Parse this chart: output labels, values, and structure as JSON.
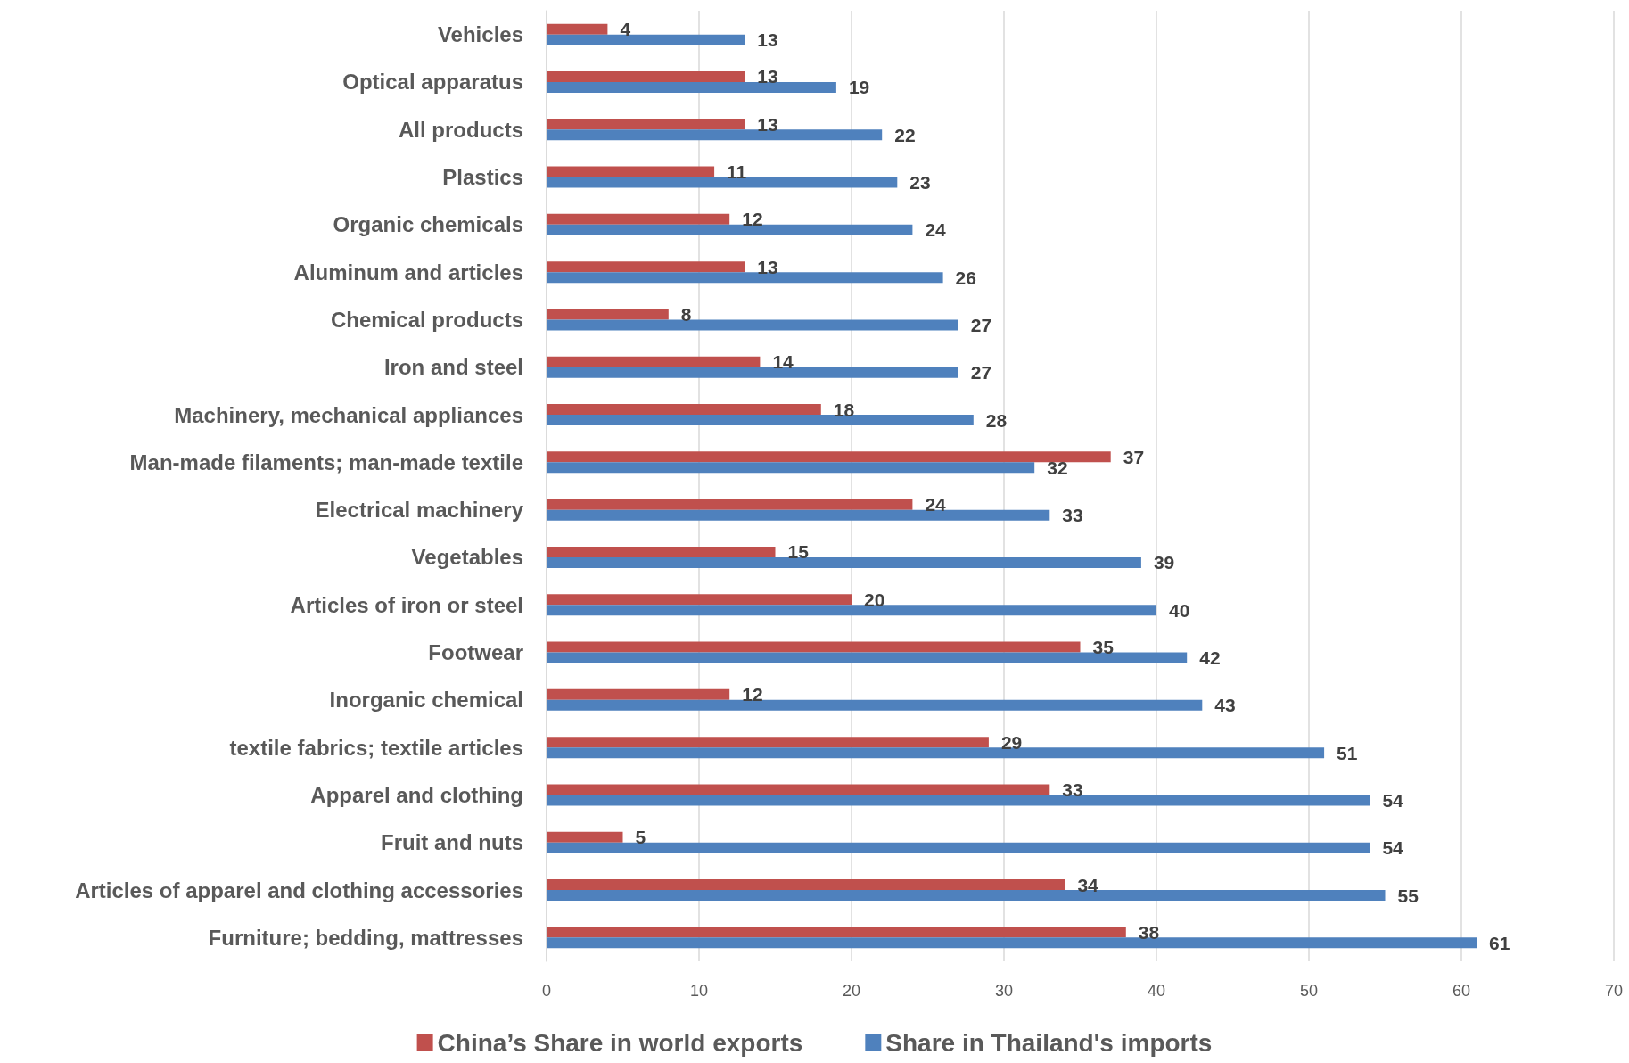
{
  "chart_data": {
    "type": "bar",
    "orientation": "horizontal",
    "categories": [
      "Vehicles",
      "Optical apparatus",
      "All products",
      "Plastics",
      "Organic chemicals",
      "Aluminum and articles",
      "Chemical products",
      "Iron and steel",
      "Machinery, mechanical appliances",
      "Man-made filaments; man-made textile",
      "Electrical machinery",
      "Vegetables",
      "Articles of iron or steel",
      "Footwear",
      "Inorganic chemical",
      "textile fabrics; textile articles",
      "Apparel and clothing",
      "Fruit and nuts",
      "Articles of apparel and clothing accessories",
      "Furniture; bedding, mattresses"
    ],
    "series": [
      {
        "name": "China’s Share in world exports",
        "color": "#c0504d",
        "values": [
          4,
          13,
          13,
          11,
          12,
          13,
          8,
          14,
          18,
          37,
          24,
          15,
          20,
          35,
          12,
          29,
          33,
          5,
          34,
          38
        ]
      },
      {
        "name": "Share in Thailand's imports",
        "color": "#4f81bd",
        "values": [
          13,
          19,
          22,
          23,
          24,
          26,
          27,
          27,
          28,
          32,
          33,
          39,
          40,
          42,
          43,
          51,
          54,
          54,
          55,
          61
        ]
      }
    ],
    "xlim": [
      0,
      70
    ],
    "xticks": [
      0,
      10,
      20,
      30,
      40,
      50,
      60,
      70
    ],
    "grid": "x",
    "legend": "bottom",
    "data_labels": true
  }
}
